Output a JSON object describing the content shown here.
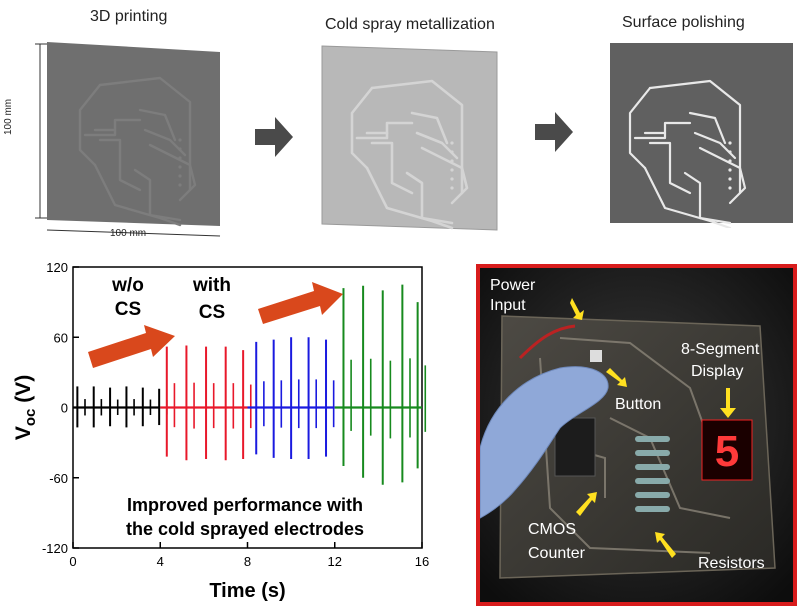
{
  "top_row": {
    "steps": [
      {
        "title": "3D printing",
        "board_color": "#6f6f6f"
      },
      {
        "title": "Cold spray metallization",
        "board_color": "#b8b8b8"
      },
      {
        "title": "Surface polishing",
        "board_color": "#606060"
      }
    ],
    "dim_vertical": "100 mm",
    "dim_horizontal": "100 mm"
  },
  "chart_panel": {
    "segment_labels": {
      "without": [
        "w/o",
        "CS"
      ],
      "with": [
        "with",
        "CS"
      ]
    },
    "caption_lines": [
      "Improved performance with",
      "the cold sprayed electrodes"
    ],
    "arrow_color": "#d9481c"
  },
  "chart_data": {
    "type": "line",
    "xlabel": "Time (s)",
    "ylabel": "Voc (V)",
    "xlim": [
      0,
      16
    ],
    "ylim": [
      -120,
      120
    ],
    "xticks": [
      0,
      4,
      8,
      12,
      16
    ],
    "yticks": [
      120,
      60,
      0,
      -60,
      -120
    ],
    "series": [
      {
        "color": "#000000",
        "x": [
          0.2,
          0.95,
          1.7,
          2.45,
          3.2,
          3.95
        ],
        "peak_max": [
          18,
          18,
          17,
          18,
          17,
          16
        ],
        "peak_min": [
          -17,
          -17,
          -16,
          -17,
          -16,
          -15
        ]
      },
      {
        "color": "#e8182a",
        "x": [
          4.3,
          5.2,
          6.1,
          7.0,
          7.8
        ],
        "peak_max": [
          52,
          53,
          52,
          52,
          49
        ],
        "peak_min": [
          -42,
          -45,
          -44,
          -45,
          -44
        ]
      },
      {
        "color": "#1a1adf",
        "x": [
          8.4,
          9.2,
          10.0,
          10.8,
          11.6
        ],
        "peak_max": [
          56,
          58,
          60,
          60,
          58
        ],
        "peak_min": [
          -40,
          -43,
          -44,
          -44,
          -42
        ]
      },
      {
        "color": "#178a1e",
        "x": [
          12.4,
          13.3,
          14.2,
          15.1,
          15.8
        ],
        "peak_max": [
          102,
          104,
          100,
          105,
          90
        ],
        "peak_min": [
          -50,
          -60,
          -66,
          -64,
          -52
        ]
      }
    ]
  },
  "photo_panel": {
    "border_color": "#d81c1c",
    "labels": {
      "power": [
        "Power",
        "Input"
      ],
      "display": [
        "8-Segment",
        "Display"
      ],
      "button": "Button",
      "cmos": [
        "CMOS",
        "Counter"
      ],
      "resistors": "Resistors",
      "digit": "5"
    }
  }
}
